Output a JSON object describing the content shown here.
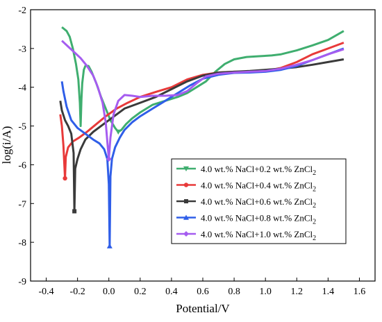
{
  "chart_data": {
    "type": "line",
    "xlabel": "Potential/V",
    "ylabel": "log(i/A)",
    "xlim": [
      -0.5,
      1.7
    ],
    "ylim": [
      -9,
      -2
    ],
    "xticks": [
      "-0.4",
      "-0.2",
      "0.0",
      "0.2",
      "0.4",
      "0.6",
      "0.8",
      "1.0",
      "1.2",
      "1.4",
      "1.6"
    ],
    "yticks": [
      "-2",
      "-3",
      "-4",
      "-5",
      "-6",
      "-7",
      "-8",
      "-9"
    ],
    "legend_position": "center-right",
    "grid": false,
    "series": [
      {
        "name": "4.0 wt.% NaCl+0.2 wt.% ZnCl",
        "subscript": "2",
        "color": "#3fae6f",
        "marker": "triangle-down",
        "points": [
          [
            -0.3,
            -2.45
          ],
          [
            -0.27,
            -2.55
          ],
          [
            -0.25,
            -2.7
          ],
          [
            -0.23,
            -3.0
          ],
          [
            -0.21,
            -3.4
          ],
          [
            -0.195,
            -3.8
          ],
          [
            -0.185,
            -4.4
          ],
          [
            -0.18,
            -5.0
          ],
          [
            -0.175,
            -4.3
          ],
          [
            -0.17,
            -3.9
          ],
          [
            -0.16,
            -3.55
          ],
          [
            -0.15,
            -3.45
          ],
          [
            -0.13,
            -3.45
          ],
          [
            -0.11,
            -3.6
          ],
          [
            -0.08,
            -3.9
          ],
          [
            -0.05,
            -4.25
          ],
          [
            -0.02,
            -4.55
          ],
          [
            0.01,
            -4.85
          ],
          [
            0.04,
            -5.05
          ],
          [
            0.06,
            -5.15
          ],
          [
            0.08,
            -5.1
          ],
          [
            0.11,
            -4.95
          ],
          [
            0.15,
            -4.8
          ],
          [
            0.2,
            -4.65
          ],
          [
            0.28,
            -4.45
          ],
          [
            0.36,
            -4.35
          ],
          [
            0.44,
            -4.25
          ],
          [
            0.5,
            -4.15
          ],
          [
            0.56,
            -4.0
          ],
          [
            0.62,
            -3.85
          ],
          [
            0.68,
            -3.6
          ],
          [
            0.74,
            -3.4
          ],
          [
            0.8,
            -3.28
          ],
          [
            0.88,
            -3.22
          ],
          [
            0.96,
            -3.2
          ],
          [
            1.04,
            -3.18
          ],
          [
            1.1,
            -3.15
          ],
          [
            1.2,
            -3.05
          ],
          [
            1.3,
            -2.92
          ],
          [
            1.4,
            -2.78
          ],
          [
            1.5,
            -2.55
          ]
        ]
      },
      {
        "name": "4.0 wt.% NaCl+0.4 wt.% ZnCl",
        "subscript": "2",
        "color": "#e83a3a",
        "marker": "circle",
        "points": [
          [
            -0.31,
            -4.7
          ],
          [
            -0.3,
            -5.0
          ],
          [
            -0.29,
            -5.5
          ],
          [
            -0.28,
            -6.35
          ],
          [
            -0.275,
            -5.8
          ],
          [
            -0.26,
            -5.55
          ],
          [
            -0.23,
            -5.4
          ],
          [
            -0.19,
            -5.3
          ],
          [
            -0.14,
            -5.15
          ],
          [
            -0.08,
            -4.95
          ],
          [
            -0.02,
            -4.75
          ],
          [
            0.05,
            -4.55
          ],
          [
            0.12,
            -4.4
          ],
          [
            0.2,
            -4.25
          ],
          [
            0.3,
            -4.12
          ],
          [
            0.4,
            -4.0
          ],
          [
            0.5,
            -3.8
          ],
          [
            0.6,
            -3.68
          ],
          [
            0.7,
            -3.62
          ],
          [
            0.8,
            -3.6
          ],
          [
            0.9,
            -3.6
          ],
          [
            1.0,
            -3.58
          ],
          [
            1.1,
            -3.5
          ],
          [
            1.2,
            -3.35
          ],
          [
            1.3,
            -3.15
          ],
          [
            1.4,
            -3.0
          ],
          [
            1.5,
            -2.85
          ]
        ]
      },
      {
        "name": "4.0 wt.% NaCl+0.6 wt.% ZnCl",
        "subscript": "2",
        "color": "#3a3a3a",
        "marker": "square",
        "points": [
          [
            -0.31,
            -4.35
          ],
          [
            -0.3,
            -4.6
          ],
          [
            -0.28,
            -4.85
          ],
          [
            -0.26,
            -5.0
          ],
          [
            -0.24,
            -5.2
          ],
          [
            -0.225,
            -5.7
          ],
          [
            -0.22,
            -7.2
          ],
          [
            -0.215,
            -6.1
          ],
          [
            -0.2,
            -5.85
          ],
          [
            -0.18,
            -5.6
          ],
          [
            -0.15,
            -5.35
          ],
          [
            -0.1,
            -5.15
          ],
          [
            -0.05,
            -5.0
          ],
          [
            0.0,
            -4.85
          ],
          [
            0.05,
            -4.7
          ],
          [
            0.1,
            -4.55
          ],
          [
            0.2,
            -4.4
          ],
          [
            0.3,
            -4.25
          ],
          [
            0.4,
            -4.05
          ],
          [
            0.5,
            -3.85
          ],
          [
            0.6,
            -3.7
          ],
          [
            0.7,
            -3.62
          ],
          [
            0.8,
            -3.6
          ],
          [
            0.9,
            -3.58
          ],
          [
            1.0,
            -3.55
          ],
          [
            1.1,
            -3.52
          ],
          [
            1.2,
            -3.48
          ],
          [
            1.3,
            -3.42
          ],
          [
            1.4,
            -3.35
          ],
          [
            1.5,
            -3.28
          ]
        ]
      },
      {
        "name": "4.0 wt.% NaCl+0.8 wt.% ZnCl",
        "subscript": "2",
        "color": "#2f5ee8",
        "marker": "triangle-up",
        "points": [
          [
            -0.3,
            -3.85
          ],
          [
            -0.29,
            -4.1
          ],
          [
            -0.27,
            -4.5
          ],
          [
            -0.24,
            -4.85
          ],
          [
            -0.2,
            -5.05
          ],
          [
            -0.15,
            -5.2
          ],
          [
            -0.1,
            -5.35
          ],
          [
            -0.06,
            -5.45
          ],
          [
            -0.03,
            -5.6
          ],
          [
            -0.01,
            -5.85
          ],
          [
            0.0,
            -6.5
          ],
          [
            0.005,
            -8.1
          ],
          [
            0.01,
            -6.3
          ],
          [
            0.02,
            -5.85
          ],
          [
            0.04,
            -5.55
          ],
          [
            0.07,
            -5.3
          ],
          [
            0.1,
            -5.1
          ],
          [
            0.15,
            -4.9
          ],
          [
            0.2,
            -4.75
          ],
          [
            0.28,
            -4.55
          ],
          [
            0.36,
            -4.35
          ],
          [
            0.44,
            -4.15
          ],
          [
            0.52,
            -3.95
          ],
          [
            0.6,
            -3.78
          ],
          [
            0.7,
            -3.68
          ],
          [
            0.8,
            -3.63
          ],
          [
            0.9,
            -3.62
          ],
          [
            1.0,
            -3.6
          ],
          [
            1.1,
            -3.55
          ],
          [
            1.2,
            -3.45
          ],
          [
            1.3,
            -3.3
          ],
          [
            1.4,
            -3.15
          ],
          [
            1.5,
            -3.0
          ]
        ]
      },
      {
        "name": "4.0 wt.% NaCl+1.0 wt.% ZnCl",
        "subscript": "2",
        "color": "#a55cf0",
        "marker": "diamond",
        "points": [
          [
            -0.3,
            -2.8
          ],
          [
            -0.26,
            -2.95
          ],
          [
            -0.22,
            -3.1
          ],
          [
            -0.18,
            -3.25
          ],
          [
            -0.14,
            -3.45
          ],
          [
            -0.1,
            -3.7
          ],
          [
            -0.07,
            -4.0
          ],
          [
            -0.04,
            -4.4
          ],
          [
            -0.02,
            -4.9
          ],
          [
            -0.01,
            -5.4
          ],
          [
            0.0,
            -5.85
          ],
          [
            0.01,
            -5.3
          ],
          [
            0.03,
            -4.7
          ],
          [
            0.06,
            -4.35
          ],
          [
            0.1,
            -4.2
          ],
          [
            0.15,
            -4.22
          ],
          [
            0.2,
            -4.25
          ],
          [
            0.28,
            -4.22
          ],
          [
            0.36,
            -4.22
          ],
          [
            0.44,
            -4.2
          ],
          [
            0.5,
            -4.1
          ],
          [
            0.56,
            -3.9
          ],
          [
            0.62,
            -3.72
          ],
          [
            0.7,
            -3.65
          ],
          [
            0.8,
            -3.62
          ],
          [
            0.9,
            -3.6
          ],
          [
            1.0,
            -3.58
          ],
          [
            1.1,
            -3.52
          ],
          [
            1.2,
            -3.42
          ],
          [
            1.3,
            -3.3
          ],
          [
            1.4,
            -3.15
          ],
          [
            1.5,
            -3.02
          ]
        ]
      }
    ]
  }
}
